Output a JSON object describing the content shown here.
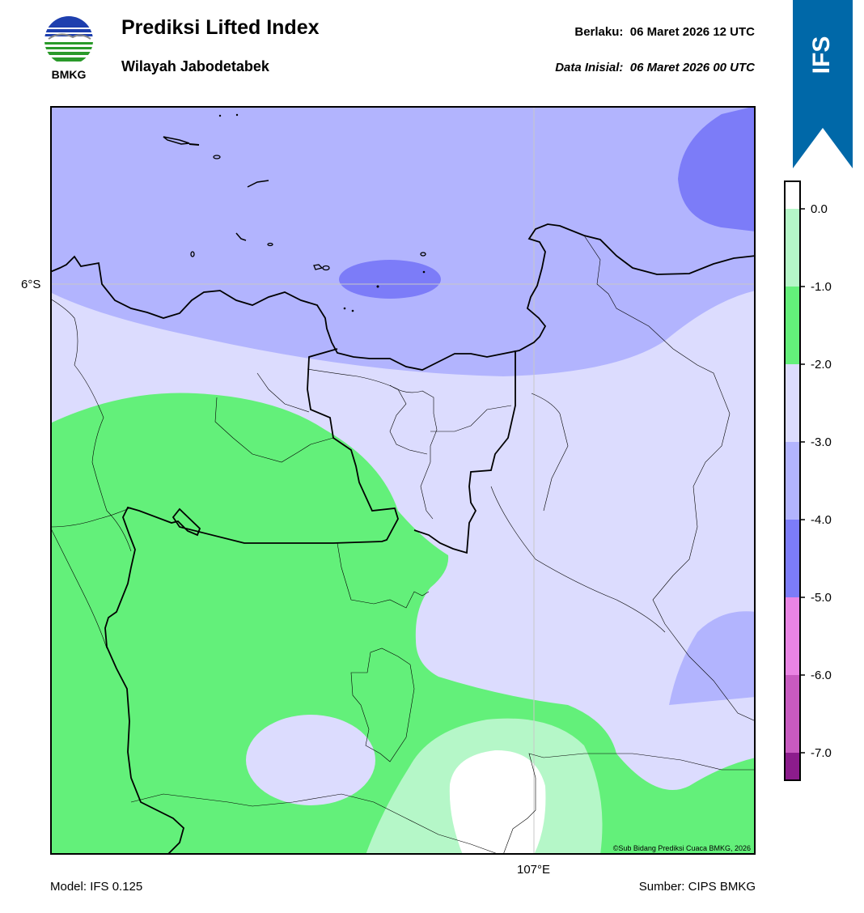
{
  "logo": {
    "text": "BMKG",
    "icon": "bmkg-logo-icon"
  },
  "header": {
    "title": "Prediksi Lifted Index",
    "subtitle": "Wilayah Jabodetabek",
    "valid_label": "Berlaku:",
    "valid_value": "06 Maret 2026 12 UTC",
    "init_label": "Data Inisial:",
    "init_value": "06 Maret 2026 00 UTC"
  },
  "ribbon": {
    "text": "IFS",
    "color": "#0068a8"
  },
  "map": {
    "lat_label": "6°S",
    "lon_label": "107°E",
    "copyright": "©Sub Bidang Prediksi Cuaca BMKG, 2026"
  },
  "footer": {
    "model": "Model: IFS 0.125",
    "source": "Sumber: CIPS BMKG"
  },
  "legend": {
    "ticks": [
      "0.0",
      "-1.0",
      "-2.0",
      "-3.0",
      "-4.0",
      "-5.0",
      "-6.0",
      "-7.0"
    ],
    "colors": [
      "#ffffff",
      "#b5f7c8",
      "#63f07a",
      "#dcdcfe",
      "#b2b4fe",
      "#7c7cf8",
      "#ea84e4",
      "#c85ac0",
      "#8c1c8c"
    ]
  }
}
